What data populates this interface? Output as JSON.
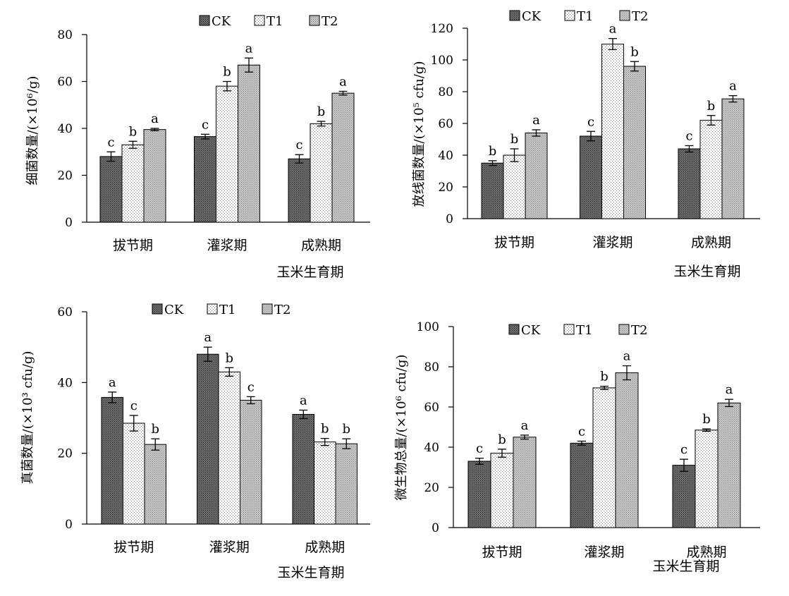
{
  "chart_data": [
    {
      "type": "bar",
      "ylabel": "细菌数量/(×10⁶/g)",
      "xlabel": "玉米生育期",
      "categories": [
        "拔节期",
        "灌浆期",
        "成熟期"
      ],
      "ylim": [
        0,
        80
      ],
      "yticks": [
        0,
        20,
        40,
        60,
        80
      ],
      "legend_position": "top",
      "series": [
        {
          "name": "CK",
          "pattern": "dark",
          "values": [
            28,
            36.5,
            27
          ],
          "errors": [
            2,
            1,
            1.8
          ],
          "letters": [
            "c",
            "c",
            "c"
          ]
        },
        {
          "name": "T1",
          "pattern": "white",
          "values": [
            33,
            58,
            42
          ],
          "errors": [
            1.5,
            2,
            1
          ],
          "letters": [
            "b",
            "b",
            "b"
          ]
        },
        {
          "name": "T2",
          "pattern": "light",
          "values": [
            39.5,
            67,
            55
          ],
          "errors": [
            0.5,
            3,
            0.8
          ],
          "letters": [
            "a",
            "a",
            "a"
          ]
        }
      ]
    },
    {
      "type": "bar",
      "ylabel": "放线菌数量/(×10⁵ cfu/g)",
      "xlabel": "玉米生育期",
      "categories": [
        "拔节期",
        "灌浆期",
        "成熟期"
      ],
      "ylim": [
        0,
        120
      ],
      "yticks": [
        0,
        20,
        40,
        60,
        80,
        100,
        120
      ],
      "legend_position": "top",
      "series": [
        {
          "name": "CK",
          "pattern": "dark",
          "values": [
            35,
            52,
            44
          ],
          "errors": [
            1.5,
            3,
            2
          ],
          "letters": [
            "b",
            "c",
            "c"
          ]
        },
        {
          "name": "T1",
          "pattern": "white",
          "values": [
            40,
            110,
            62
          ],
          "errors": [
            4,
            3.5,
            3
          ],
          "letters": [
            "b",
            "a",
            "b"
          ]
        },
        {
          "name": "T2",
          "pattern": "light",
          "values": [
            54,
            96,
            75.5
          ],
          "errors": [
            2,
            3,
            2
          ],
          "letters": [
            "a",
            "b",
            "a"
          ]
        }
      ]
    },
    {
      "type": "bar",
      "ylabel": "真菌数量/(×10³ cfu/g)",
      "xlabel": "玉米生育期",
      "categories": [
        "拔节期",
        "灌浆期",
        "成熟期"
      ],
      "ylim": [
        0,
        60
      ],
      "yticks": [
        0,
        20,
        40,
        60
      ],
      "legend_position": "top",
      "series": [
        {
          "name": "CK",
          "pattern": "dark",
          "values": [
            35.8,
            48,
            31
          ],
          "errors": [
            1.5,
            2,
            1.2
          ],
          "letters": [
            "a",
            "a",
            "a"
          ]
        },
        {
          "name": "T1",
          "pattern": "white",
          "values": [
            28.5,
            43,
            23.2
          ],
          "errors": [
            2.2,
            1.2,
            1
          ],
          "letters": [
            "c",
            "b",
            "b"
          ]
        },
        {
          "name": "T2",
          "pattern": "light",
          "values": [
            22.5,
            35,
            22.7
          ],
          "errors": [
            1.6,
            1,
            1.4
          ],
          "letters": [
            "b",
            "c",
            "b"
          ]
        }
      ]
    },
    {
      "type": "bar",
      "ylabel": "微生物总量/(×10⁶ cfu/g)",
      "xlabel": "玉米生育期",
      "categories": [
        "拔节期",
        "灌浆期",
        "成熟期"
      ],
      "ylim": [
        0,
        100
      ],
      "yticks": [
        0,
        20,
        40,
        60,
        80,
        100
      ],
      "legend_position": "top",
      "series": [
        {
          "name": "CK",
          "pattern": "dark",
          "values": [
            33,
            42,
            31
          ],
          "errors": [
            1.5,
            1,
            3
          ],
          "letters": [
            "c",
            "c",
            "c"
          ]
        },
        {
          "name": "T1",
          "pattern": "white",
          "values": [
            37,
            69.5,
            48.5
          ],
          "errors": [
            2,
            0.8,
            0.6
          ],
          "letters": [
            "b",
            "b",
            "b"
          ]
        },
        {
          "name": "T2",
          "pattern": "light",
          "values": [
            45,
            77,
            62
          ],
          "errors": [
            1,
            3.5,
            1.8
          ],
          "letters": [
            "a",
            "a",
            "a"
          ]
        }
      ]
    }
  ]
}
